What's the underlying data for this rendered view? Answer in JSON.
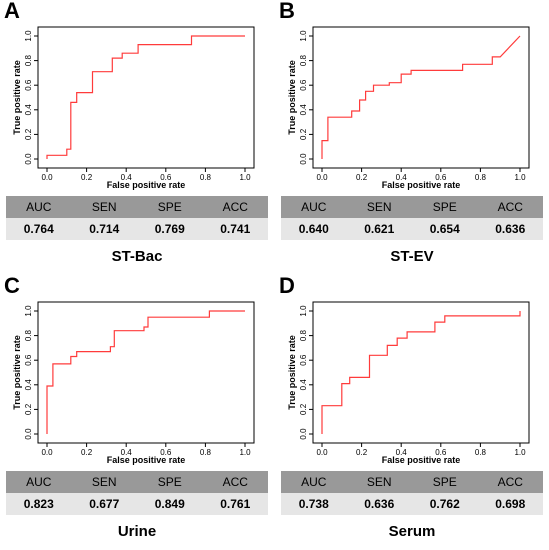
{
  "chart_data": [
    {
      "type": "line",
      "panel": "A",
      "xlabel": "False positive rate",
      "ylabel": "True positive rate",
      "xlim": [
        0,
        1
      ],
      "ylim": [
        0,
        1
      ],
      "xticks": [
        "0.0",
        "0.2",
        "0.4",
        "0.6",
        "0.8",
        "1.0"
      ],
      "yticks": [
        "0.0",
        "0.2",
        "0.4",
        "0.6",
        "0.8",
        "1.0"
      ],
      "color": "#ff3b3b",
      "series": [
        {
          "points": [
            [
              0,
              0
            ],
            [
              0,
              0.03
            ],
            [
              0.1,
              0.03
            ],
            [
              0.1,
              0.08
            ],
            [
              0.12,
              0.08
            ],
            [
              0.12,
              0.46
            ],
            [
              0.15,
              0.46
            ],
            [
              0.15,
              0.54
            ],
            [
              0.23,
              0.54
            ],
            [
              0.23,
              0.71
            ],
            [
              0.33,
              0.71
            ],
            [
              0.33,
              0.82
            ],
            [
              0.38,
              0.82
            ],
            [
              0.38,
              0.86
            ],
            [
              0.46,
              0.86
            ],
            [
              0.46,
              0.93
            ],
            [
              0.73,
              0.93
            ],
            [
              0.73,
              1.0
            ],
            [
              1.0,
              1.0
            ]
          ]
        }
      ],
      "table": {
        "headers": [
          "AUC",
          "SEN",
          "SPE",
          "ACC"
        ],
        "values": [
          "0.764",
          "0.714",
          "0.769",
          "0.741"
        ]
      },
      "label": "ST-Bac"
    },
    {
      "type": "line",
      "panel": "B",
      "xlabel": "False positive rate",
      "ylabel": "True positive rate",
      "xlim": [
        0,
        1
      ],
      "ylim": [
        0,
        1
      ],
      "xticks": [
        "0.0",
        "0.2",
        "0.4",
        "0.6",
        "0.8",
        "1.0"
      ],
      "yticks": [
        "0.0",
        "0.2",
        "0.4",
        "0.6",
        "0.8",
        "1.0"
      ],
      "color": "#ff3b3b",
      "series": [
        {
          "points": [
            [
              0,
              0
            ],
            [
              0,
              0.15
            ],
            [
              0.03,
              0.15
            ],
            [
              0.03,
              0.34
            ],
            [
              0.15,
              0.34
            ],
            [
              0.15,
              0.39
            ],
            [
              0.19,
              0.39
            ],
            [
              0.19,
              0.48
            ],
            [
              0.22,
              0.48
            ],
            [
              0.22,
              0.55
            ],
            [
              0.26,
              0.55
            ],
            [
              0.26,
              0.6
            ],
            [
              0.34,
              0.6
            ],
            [
              0.34,
              0.62
            ],
            [
              0.4,
              0.62
            ],
            [
              0.4,
              0.69
            ],
            [
              0.45,
              0.69
            ],
            [
              0.45,
              0.72
            ],
            [
              0.71,
              0.72
            ],
            [
              0.71,
              0.77
            ],
            [
              0.86,
              0.77
            ],
            [
              0.86,
              0.83
            ],
            [
              0.9,
              0.83
            ],
            [
              1.0,
              1.0
            ]
          ]
        }
      ],
      "table": {
        "headers": [
          "AUC",
          "SEN",
          "SPE",
          "ACC"
        ],
        "values": [
          "0.640",
          "0.621",
          "0.654",
          "0.636"
        ]
      },
      "label": "ST-EV"
    },
    {
      "type": "line",
      "panel": "C",
      "xlabel": "False positive rate",
      "ylabel": "True positive rate",
      "xlim": [
        0,
        1
      ],
      "ylim": [
        0,
        1
      ],
      "xticks": [
        "0.0",
        "0.2",
        "0.4",
        "0.6",
        "0.8",
        "1.0"
      ],
      "yticks": [
        "0.0",
        "0.2",
        "0.4",
        "0.6",
        "0.8",
        "1.0"
      ],
      "color": "#ff3b3b",
      "series": [
        {
          "points": [
            [
              0,
              0
            ],
            [
              0,
              0.39
            ],
            [
              0.03,
              0.39
            ],
            [
              0.03,
              0.57
            ],
            [
              0.12,
              0.57
            ],
            [
              0.12,
              0.63
            ],
            [
              0.15,
              0.63
            ],
            [
              0.15,
              0.67
            ],
            [
              0.32,
              0.67
            ],
            [
              0.32,
              0.71
            ],
            [
              0.34,
              0.71
            ],
            [
              0.34,
              0.84
            ],
            [
              0.49,
              0.84
            ],
            [
              0.49,
              0.87
            ],
            [
              0.51,
              0.87
            ],
            [
              0.51,
              0.95
            ],
            [
              0.82,
              0.95
            ],
            [
              0.82,
              1.0
            ],
            [
              1.0,
              1.0
            ]
          ]
        }
      ],
      "table": {
        "headers": [
          "AUC",
          "SEN",
          "SPE",
          "ACC"
        ],
        "values": [
          "0.823",
          "0.677",
          "0.849",
          "0.761"
        ]
      },
      "label": "Urine"
    },
    {
      "type": "line",
      "panel": "D",
      "xlabel": "False positive rate",
      "ylabel": "True positive rate",
      "xlim": [
        0,
        1
      ],
      "ylim": [
        0,
        1
      ],
      "xticks": [
        "0.0",
        "0.2",
        "0.4",
        "0.6",
        "0.8",
        "1.0"
      ],
      "yticks": [
        "0.0",
        "0.2",
        "0.4",
        "0.6",
        "0.8",
        "1.0"
      ],
      "color": "#ff3b3b",
      "series": [
        {
          "points": [
            [
              0,
              0
            ],
            [
              0,
              0.23
            ],
            [
              0.1,
              0.23
            ],
            [
              0.1,
              0.41
            ],
            [
              0.14,
              0.41
            ],
            [
              0.14,
              0.46
            ],
            [
              0.24,
              0.46
            ],
            [
              0.24,
              0.64
            ],
            [
              0.33,
              0.64
            ],
            [
              0.33,
              0.72
            ],
            [
              0.38,
              0.72
            ],
            [
              0.38,
              0.78
            ],
            [
              0.43,
              0.78
            ],
            [
              0.43,
              0.83
            ],
            [
              0.57,
              0.83
            ],
            [
              0.57,
              0.91
            ],
            [
              0.62,
              0.91
            ],
            [
              0.62,
              0.96
            ],
            [
              1.0,
              0.96
            ],
            [
              1.0,
              1.0
            ]
          ]
        }
      ],
      "table": {
        "headers": [
          "AUC",
          "SEN",
          "SPE",
          "ACC"
        ],
        "values": [
          "0.738",
          "0.636",
          "0.762",
          "0.698"
        ]
      },
      "label": "Serum"
    }
  ]
}
